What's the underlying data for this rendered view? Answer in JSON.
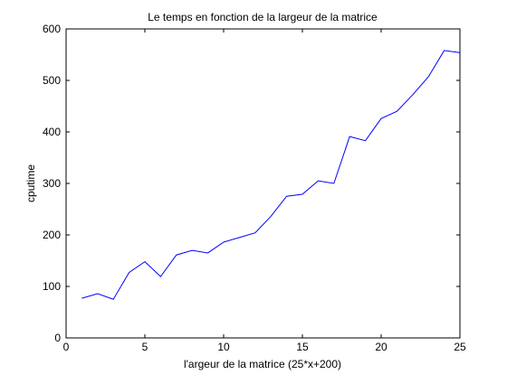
{
  "chart_data": {
    "type": "line",
    "title": "Le temps en fonction de la largeur de la matrice",
    "xlabel": "l'argeur de la matrice (25*x+200)",
    "ylabel": "cputime",
    "xlim": [
      0,
      25
    ],
    "ylim": [
      0,
      600
    ],
    "xticks": [
      "0",
      "5",
      "10",
      "15",
      "20",
      "25"
    ],
    "yticks": [
      "0",
      "100",
      "200",
      "300",
      "400",
      "500",
      "600"
    ],
    "grid": false,
    "series": [
      {
        "color": "#0000ff",
        "x": [
          1,
          2,
          3,
          4,
          5,
          6,
          7,
          8,
          9,
          10,
          11,
          12,
          13,
          14,
          15,
          16,
          17,
          18,
          19,
          20,
          21,
          22,
          23,
          24,
          25
        ],
        "values": [
          77,
          86,
          75,
          127,
          148,
          119,
          161,
          170,
          165,
          186,
          195,
          204,
          236,
          275,
          279,
          305,
          300,
          391,
          383,
          426,
          440,
          472,
          507,
          558,
          554
        ]
      }
    ]
  }
}
